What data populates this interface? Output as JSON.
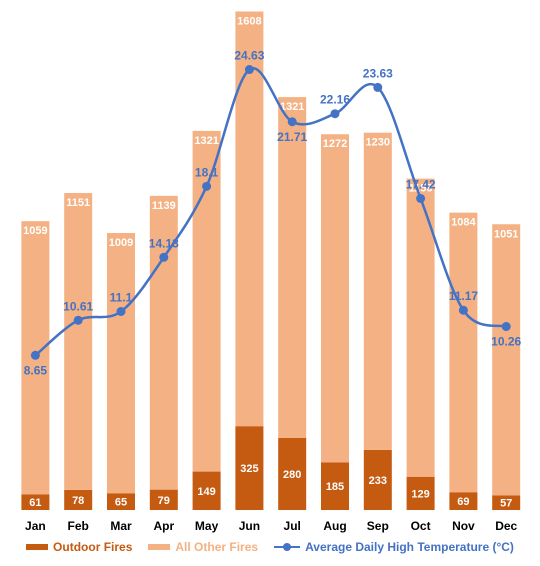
{
  "chart_data": {
    "type": "bar",
    "stacked": true,
    "categories": [
      "Jan",
      "Feb",
      "Mar",
      "Apr",
      "May",
      "Jun",
      "Jul",
      "Aug",
      "Sep",
      "Oct",
      "Nov",
      "Dec"
    ],
    "series": [
      {
        "name": "Outdoor Fires",
        "type": "bar",
        "color": "#c55a11",
        "values": [
          61,
          78,
          65,
          79,
          149,
          325,
          280,
          185,
          233,
          129,
          69,
          57
        ]
      },
      {
        "name": "All Other Fires",
        "type": "bar",
        "color": "#f4b183",
        "values": [
          1059,
          1151,
          1009,
          1139,
          1321,
          1608,
          1321,
          1272,
          1230,
          1156,
          1084,
          1051
        ]
      },
      {
        "name": "Average Daily High Temperature (°C)",
        "type": "line",
        "color": "#4472c4",
        "values": [
          8.65,
          10.61,
          11.1,
          14.13,
          18.1,
          24.63,
          21.71,
          22.16,
          23.63,
          17.42,
          11.17,
          10.26
        ]
      }
    ],
    "ylim": [
      0,
      1900
    ],
    "y2lim": [
      0,
      27.4
    ],
    "grid": false,
    "legend": "bottom"
  }
}
